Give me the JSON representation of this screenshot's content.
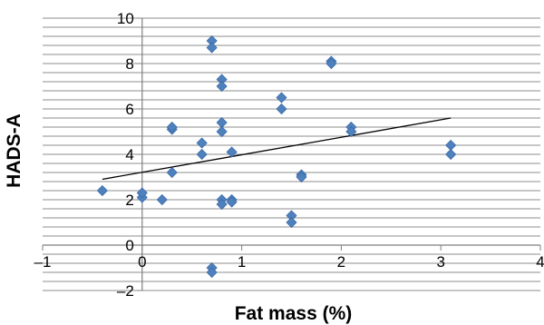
{
  "chart_data": {
    "type": "scatter",
    "title": "",
    "xlabel": "Fat mass (%)",
    "ylabel": "HADS-A",
    "xlim": [
      -1,
      4
    ],
    "ylim": [
      -2,
      10
    ],
    "x_ticks": [
      "–1",
      "0",
      "1",
      "2",
      "3",
      "4"
    ],
    "y_ticks": [
      "–2",
      "0",
      "2",
      "4",
      "6",
      "8",
      "10"
    ],
    "minor_grid_step": 0.4,
    "marker": "diamond",
    "marker_color": "#4f81bd",
    "trendline": {
      "type": "linear",
      "x": [
        -0.4,
        3.1
      ],
      "y": [
        2.9,
        5.6
      ]
    },
    "points": [
      {
        "x": -0.4,
        "y": 2.4
      },
      {
        "x": 0.0,
        "y": 2.1
      },
      {
        "x": 0.0,
        "y": 2.3
      },
      {
        "x": 0.2,
        "y": 2.0
      },
      {
        "x": 0.3,
        "y": 5.1
      },
      {
        "x": 0.3,
        "y": 5.2
      },
      {
        "x": 0.3,
        "y": 3.2
      },
      {
        "x": 0.6,
        "y": 4.5
      },
      {
        "x": 0.6,
        "y": 4.0
      },
      {
        "x": 0.7,
        "y": 9.0
      },
      {
        "x": 0.7,
        "y": 8.7
      },
      {
        "x": 0.7,
        "y": -1.0
      },
      {
        "x": 0.7,
        "y": -1.2
      },
      {
        "x": 0.8,
        "y": 7.3
      },
      {
        "x": 0.8,
        "y": 7.0
      },
      {
        "x": 0.8,
        "y": 5.4
      },
      {
        "x": 0.8,
        "y": 5.0
      },
      {
        "x": 0.8,
        "y": 2.0
      },
      {
        "x": 0.8,
        "y": 1.8
      },
      {
        "x": 0.9,
        "y": 4.1
      },
      {
        "x": 0.9,
        "y": 2.0
      },
      {
        "x": 0.9,
        "y": 1.9
      },
      {
        "x": 1.4,
        "y": 6.5
      },
      {
        "x": 1.4,
        "y": 6.0
      },
      {
        "x": 1.6,
        "y": 3.1
      },
      {
        "x": 1.6,
        "y": 3.0
      },
      {
        "x": 1.5,
        "y": 1.3
      },
      {
        "x": 1.5,
        "y": 1.0
      },
      {
        "x": 1.9,
        "y": 8.1
      },
      {
        "x": 1.9,
        "y": 8.0
      },
      {
        "x": 2.1,
        "y": 5.2
      },
      {
        "x": 2.1,
        "y": 5.0
      },
      {
        "x": 3.1,
        "y": 4.4
      },
      {
        "x": 3.1,
        "y": 4.0
      }
    ]
  }
}
